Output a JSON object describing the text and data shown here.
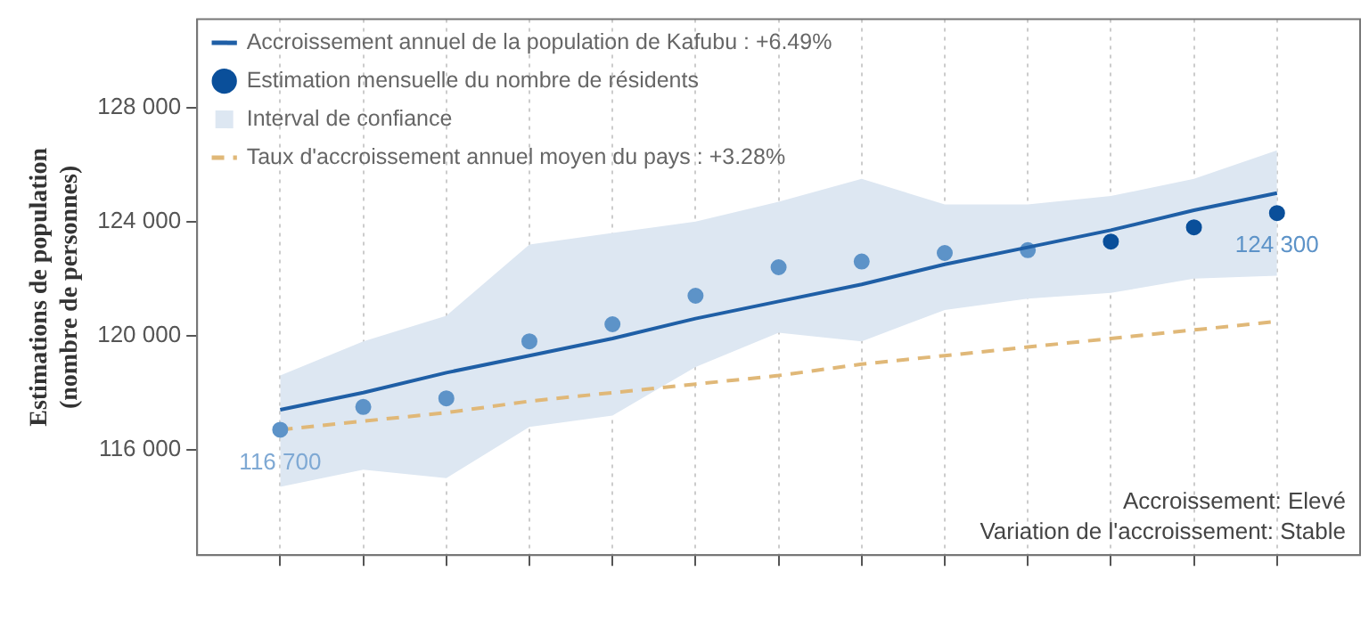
{
  "chart_data": {
    "type": "line",
    "ylabel": "Estimations de population\n(nombre de personnes)",
    "categories": [
      null,
      null,
      null,
      null,
      null,
      null,
      null,
      null,
      null,
      null,
      null,
      null,
      null
    ],
    "ylim": [
      112300,
      131100
    ],
    "yticks": [
      {
        "value": 116000,
        "label": "116 000"
      },
      {
        "value": 120000,
        "label": "120 000"
      },
      {
        "value": 124000,
        "label": "124 000"
      },
      {
        "value": 128000,
        "label": "128 000"
      }
    ],
    "grid": "x",
    "legend": "top left",
    "series": [
      {
        "name": "Accroissement annuel de la population de Kafubu : +6.49%",
        "color": "#1f5fa6",
        "values": [
          117400,
          118000,
          118700,
          119300,
          119900,
          120600,
          121200,
          121800,
          122500,
          123100,
          123700,
          124400,
          125000
        ]
      },
      {
        "name": "Estimation mensuelle du nombre de résidents",
        "type": "scatter",
        "color": "#0a4f9a",
        "colors": [
          "#5d93c8",
          "#5d93c8",
          "#5d93c8",
          "#5d93c8",
          "#5d93c8",
          "#5d93c8",
          "#5d93c8",
          "#5d93c8",
          "#5d93c8",
          "#5d93c8",
          "#0a4f9a",
          "#0a4f9a",
          "#0a4f9a"
        ],
        "values": [
          116700,
          117500,
          117800,
          119800,
          120400,
          121400,
          122400,
          122600,
          122900,
          123000,
          123300,
          123800,
          124300
        ],
        "value_labels": [
          "116 700",
          null,
          null,
          null,
          null,
          null,
          null,
          null,
          null,
          null,
          null,
          null,
          "124 300"
        ]
      },
      {
        "name": "Interval de confiance",
        "type": "area",
        "color": "#dde7f2",
        "values": [
          null,
          null,
          null,
          null,
          null,
          null,
          null,
          null,
          null,
          null,
          null,
          null,
          null
        ],
        "lower": [
          114700,
          115300,
          115000,
          116800,
          117200,
          118900,
          120100,
          119800,
          120900,
          121300,
          121500,
          122000,
          122100
        ],
        "upper": [
          118600,
          119800,
          120700,
          123200,
          123600,
          124000,
          124700,
          125500,
          124600,
          124600,
          124900,
          125500,
          126500
        ]
      },
      {
        "name": "Taux d'accroissement annuel moyen du pays : +3.28%",
        "color": "#e0b878",
        "line_style": "dashed",
        "values": [
          116700,
          117000,
          117300,
          117700,
          118000,
          118300,
          118600,
          119000,
          119300,
          119600,
          119900,
          120200,
          120500
        ]
      }
    ],
    "annotations": [
      "Accroissement: Elevé\nVariation de l'accroissement: Stable"
    ]
  }
}
